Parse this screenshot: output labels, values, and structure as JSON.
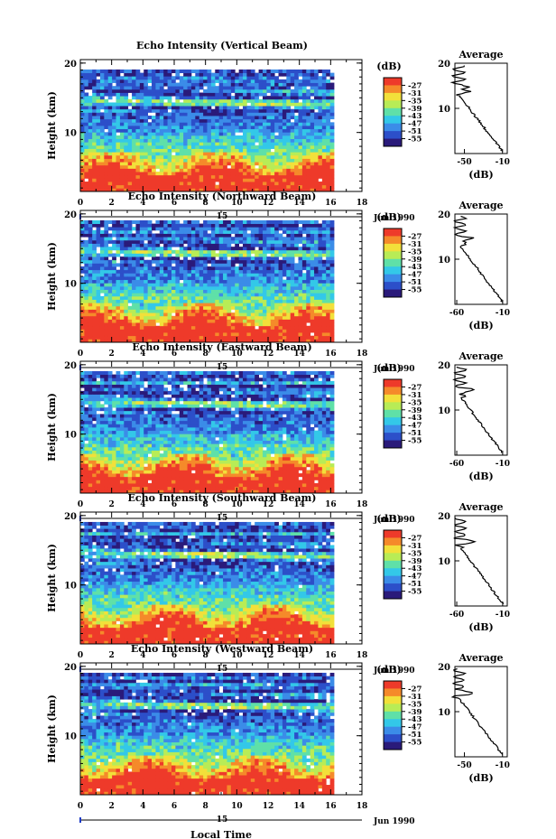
{
  "chart_data": [
    {
      "type": "heatmap",
      "title": "Echo Intensity (Vertical Beam)",
      "ylabel": "Height (km)",
      "x_ticks": [
        "0",
        "2",
        "4",
        "6",
        "8",
        "10",
        "12",
        "14",
        "16",
        "18"
      ],
      "y_ticks": [
        "10",
        "20"
      ],
      "xlim": [
        0,
        18
      ],
      "ylim": [
        1.5,
        20.5
      ],
      "date_label": "15",
      "month_label": "Jun 1990",
      "colorbar": {
        "unit": "(dB)",
        "levels": [
          "-27",
          "-31",
          "-35",
          "-39",
          "-43",
          "-47",
          "-51",
          "-55"
        ]
      },
      "average": {
        "title": "Average",
        "xlabel": "(dB)",
        "x_ticks": [
          "-50",
          "-10"
        ],
        "y_ticks": [
          "10",
          "20"
        ],
        "xlim": [
          -60,
          -5
        ]
      }
    },
    {
      "type": "heatmap",
      "title": "Echo Intensity (Northward Beam)",
      "ylabel": "Height (km)",
      "x_ticks": [
        "0",
        "2",
        "4",
        "6",
        "8",
        "10",
        "12",
        "14",
        "16",
        "18"
      ],
      "y_ticks": [
        "10",
        "20"
      ],
      "xlim": [
        0,
        18
      ],
      "ylim": [
        1.5,
        20.5
      ],
      "date_label": "15",
      "month_label": "Jun 1990",
      "colorbar": {
        "unit": "(dB)",
        "levels": [
          "-27",
          "-31",
          "-35",
          "-39",
          "-43",
          "-47",
          "-51",
          "-55"
        ]
      },
      "average": {
        "title": "Average",
        "xlabel": "(dB)",
        "x_ticks": [
          "-60",
          "-10"
        ],
        "y_ticks": [
          "10",
          "20"
        ],
        "xlim": [
          -62,
          -5
        ]
      }
    },
    {
      "type": "heatmap",
      "title": "Echo Intensity (Eastward Beam)",
      "ylabel": "Height (km)",
      "x_ticks": [
        "0",
        "2",
        "4",
        "6",
        "8",
        "10",
        "12",
        "14",
        "16",
        "18"
      ],
      "y_ticks": [
        "10",
        "20"
      ],
      "xlim": [
        0,
        18
      ],
      "ylim": [
        1.5,
        20.5
      ],
      "date_label": "15",
      "month_label": "Jun 1990",
      "colorbar": {
        "unit": "(dB)",
        "levels": [
          "-27",
          "-31",
          "-35",
          "-39",
          "-43",
          "-47",
          "-51",
          "-55"
        ]
      },
      "average": {
        "title": "Average",
        "xlabel": "(dB)",
        "x_ticks": [
          "-60",
          "-10"
        ],
        "y_ticks": [
          "10",
          "20"
        ],
        "xlim": [
          -62,
          -5
        ]
      }
    },
    {
      "type": "heatmap",
      "title": "Echo Intensity (Southward Beam)",
      "ylabel": "Height (km)",
      "x_ticks": [
        "0",
        "2",
        "4",
        "6",
        "8",
        "10",
        "12",
        "14",
        "16",
        "18"
      ],
      "y_ticks": [
        "10",
        "20"
      ],
      "xlim": [
        0,
        18
      ],
      "ylim": [
        1.5,
        20.5
      ],
      "date_label": "15",
      "month_label": "Jun 1990",
      "colorbar": {
        "unit": "(dB)",
        "levels": [
          "-27",
          "-31",
          "-35",
          "-39",
          "-43",
          "-47",
          "-51",
          "-55"
        ]
      },
      "average": {
        "title": "Average",
        "xlabel": "(dB)",
        "x_ticks": [
          "-60",
          "-10"
        ],
        "y_ticks": [
          "10",
          "20"
        ],
        "xlim": [
          -62,
          -5
        ]
      }
    },
    {
      "type": "heatmap",
      "title": "Echo Intensity (Westward Beam)",
      "ylabel": "Height (km)",
      "xlabel": "Local Time",
      "x_ticks": [
        "0",
        "2",
        "4",
        "6",
        "8",
        "10",
        "12",
        "14",
        "16",
        "18"
      ],
      "y_ticks": [
        "10",
        "20"
      ],
      "xlim": [
        0,
        18
      ],
      "ylim": [
        1.5,
        20.5
      ],
      "date_label": "15",
      "month_label": "Jun 1990",
      "colorbar": {
        "unit": "(dB)",
        "levels": [
          "-27",
          "-31",
          "-35",
          "-39",
          "-43",
          "-47",
          "-51",
          "-55"
        ]
      },
      "average": {
        "title": "Average",
        "xlabel": "(dB)",
        "x_ticks": [
          "-50",
          "-10"
        ],
        "y_ticks": [
          "10",
          "20"
        ],
        "xlim": [
          -60,
          -5
        ]
      }
    }
  ]
}
